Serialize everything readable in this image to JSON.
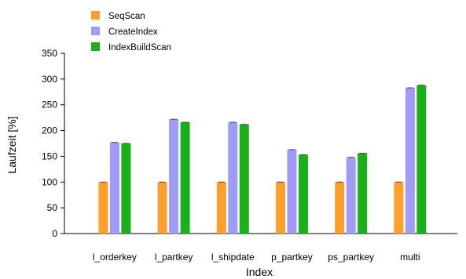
{
  "chart_data": {
    "type": "bar",
    "title": "",
    "xlabel": "Index",
    "ylabel": "Laufzeit [%]",
    "ylim": [
      0,
      350
    ],
    "yticks": [
      0,
      50,
      100,
      150,
      200,
      250,
      300,
      350
    ],
    "grid": false,
    "legend": "top-left",
    "categories": [
      "l_orderkey",
      "l_partkey",
      "l_shipdate",
      "p_partkey",
      "ps_partkey",
      "multi"
    ],
    "series": [
      {
        "name": "SeqScan",
        "color": "#ff9f2e",
        "values": [
          100,
          100,
          100,
          100,
          100,
          100
        ]
      },
      {
        "name": "CreateIndex",
        "color": "#a09cf5",
        "values": [
          177,
          222,
          216,
          163,
          148,
          283
        ]
      },
      {
        "name": "IndexBuildScan",
        "color": "#19b019",
        "values": [
          175,
          216,
          212,
          153,
          156,
          288
        ]
      }
    ]
  }
}
